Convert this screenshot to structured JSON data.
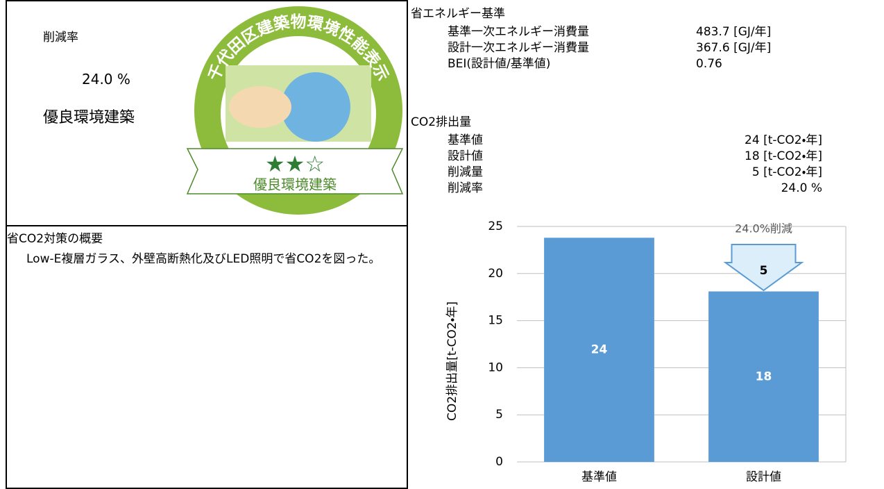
{
  "left": {
    "reduction_label": "削減率",
    "reduction_value": "24.0 %",
    "rating": "優良環境建築",
    "badge": {
      "arc_text": "千代田区建築物環境性能表示",
      "stars": "★★☆",
      "banner": "優良環境建築"
    }
  },
  "measures": {
    "title": "省CO2対策の概要",
    "body": "Low-E複層ガラス、外壁高断熱化及びLED照明で省CO2を図った。"
  },
  "energy": {
    "title": "省エネルギー基準",
    "rows": [
      [
        "基準一次エネルギー消費量",
        "483.7 [GJ/年]"
      ],
      [
        "設計一次エネルギー消費量",
        "367.6 [GJ/年]"
      ],
      [
        "BEI(設計値/基準値)",
        "0.76"
      ]
    ]
  },
  "co2": {
    "title": "CO2排出量",
    "rows": [
      [
        "基準値",
        "24 [t-CO2・年]"
      ],
      [
        "設計値",
        "18 [t-CO2・年]"
      ],
      [
        "削減量",
        "5 [t-CO2・年]"
      ],
      [
        "削減率",
        "24.0 %"
      ]
    ]
  },
  "chart_data": {
    "type": "bar",
    "y_label": "CO2排出量[t-CO2・年]",
    "categories": [
      "基準値",
      "設計値"
    ],
    "values": [
      23.8,
      18.1
    ],
    "value_labels": [
      "24",
      "18"
    ],
    "color": "#5b9bd5",
    "ylim": [
      0,
      25
    ],
    "yticks": [
      0,
      5,
      10,
      15,
      20,
      25
    ],
    "grid": true,
    "annotations": [
      "24.0%削減",
      "5"
    ]
  }
}
